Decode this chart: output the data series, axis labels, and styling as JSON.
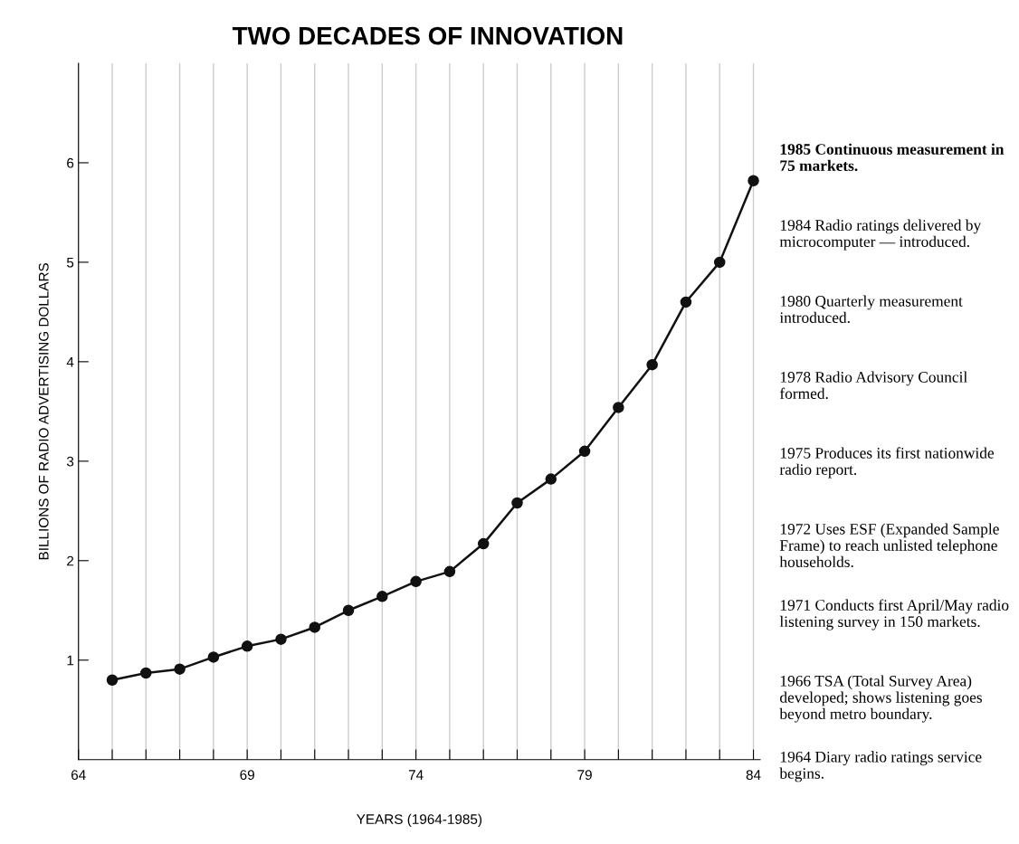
{
  "chart_data": {
    "type": "line",
    "title": "TWO DECADES OF INNOVATION",
    "xlabel": "YEARS (1964-1985)",
    "ylabel": "BILLIONS OF RADIO ADVERTISING DOLLARS",
    "x": [
      65,
      66,
      67,
      68,
      69,
      70,
      71,
      72,
      73,
      74,
      75,
      76,
      77,
      78,
      79,
      80,
      81,
      82,
      83,
      84
    ],
    "series": [
      {
        "color": "#111111",
        "values": [
          0.8,
          0.87,
          0.91,
          1.03,
          1.14,
          1.21,
          1.33,
          1.5,
          1.64,
          1.79,
          1.89,
          2.17,
          2.58,
          2.82,
          3.1,
          3.54,
          3.97,
          4.6,
          5.0,
          5.82
        ]
      }
    ],
    "marker": "circle",
    "line_style": "solid",
    "grid": "x",
    "xlim": [
      64,
      84.2
    ],
    "ylim": [
      0,
      7
    ],
    "xticks": [
      64,
      {
        "value": 65,
        "label": null
      },
      {
        "value": 66,
        "label": null
      },
      {
        "value": 67,
        "label": null
      },
      {
        "value": 68,
        "label": null
      },
      69,
      {
        "value": 70,
        "label": null
      },
      {
        "value": 71,
        "label": null
      },
      {
        "value": 72,
        "label": null
      },
      {
        "value": 73,
        "label": null
      },
      74,
      {
        "value": 75,
        "label": null
      },
      {
        "value": 76,
        "label": null
      },
      {
        "value": 77,
        "label": null
      },
      {
        "value": 78,
        "label": null
      },
      79,
      {
        "value": 80,
        "label": null
      },
      {
        "value": 81,
        "label": null
      },
      {
        "value": 82,
        "label": null
      },
      {
        "value": 83,
        "label": null
      },
      84
    ],
    "yticks": [
      1,
      2,
      3,
      4,
      5,
      6
    ],
    "annotations": [
      "1985 Continuous measurement in 75 markets.",
      "1984 Radio ratings delivered by microcomputer — introduced.",
      "1980 Quarterly measurement introduced.",
      "1978 Radio Advisory Council formed.",
      "1975 Produces its first nationwide radio report.",
      "1972 Uses ESF (Expanded Sample Frame) to reach unlisted telephone households.",
      "1971 Conducts first April/May radio listening survey in 150 markets.",
      "1966 TSA (Total Survey Area) developed; shows listening goes beyond metro boundary.",
      "1964 Diary radio ratings service begins."
    ]
  }
}
